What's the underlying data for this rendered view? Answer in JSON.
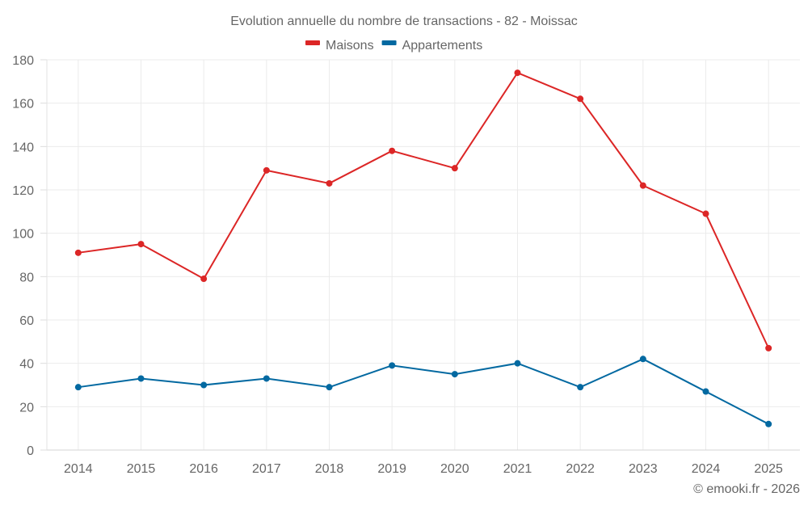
{
  "chart_data": {
    "type": "line",
    "title": "Evolution annuelle du nombre de transactions - 82 - Moissac",
    "xlabel": "",
    "ylabel": "",
    "categories": [
      "2014",
      "2015",
      "2016",
      "2017",
      "2018",
      "2019",
      "2020",
      "2021",
      "2022",
      "2023",
      "2024",
      "2025"
    ],
    "series": [
      {
        "name": "Maisons",
        "color": "#dc2626",
        "values": [
          91,
          95,
          79,
          129,
          123,
          138,
          130,
          174,
          162,
          122,
          109,
          47
        ]
      },
      {
        "name": "Appartements",
        "color": "#0369a1",
        "values": [
          29,
          33,
          30,
          33,
          29,
          39,
          35,
          40,
          29,
          42,
          27,
          12
        ]
      }
    ],
    "ylim": [
      0,
      180
    ],
    "yticks": [
      0,
      20,
      40,
      60,
      80,
      100,
      120,
      140,
      160,
      180
    ],
    "ytick_labels": [
      "0",
      "20",
      "40",
      "60",
      "80",
      "100",
      "120",
      "140",
      "160",
      "180"
    ],
    "grid": true,
    "legend_position": "top-center",
    "credit": "© emooki.fr - 2026"
  }
}
